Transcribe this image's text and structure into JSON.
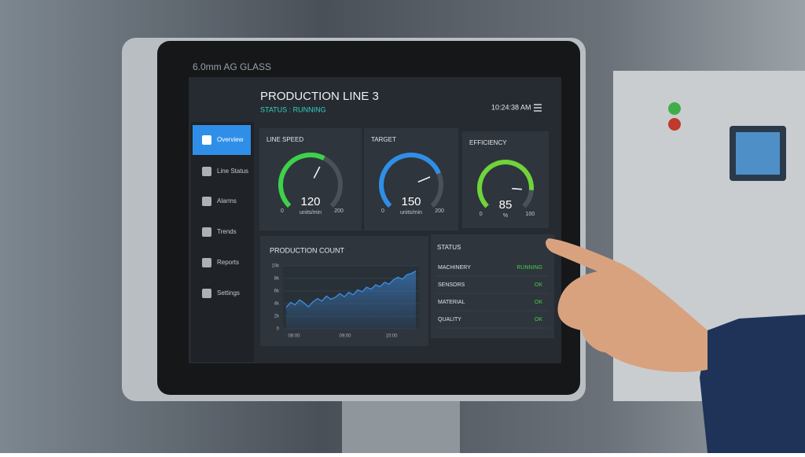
{
  "bezel_label": "6.0mm AG GLASS",
  "header": {
    "title": "PRODUCTION LINE 3",
    "status": "STATUS : RUNNING",
    "time": "10:24:38 AM"
  },
  "nav": [
    "Overview",
    "Line Status",
    "Alarms",
    "Trends",
    "Reports",
    "Settings"
  ],
  "gauges": [
    {
      "title": "LINE SPEED",
      "value": 120,
      "unit": "units/min",
      "min": 0,
      "max": 200,
      "color": "#3ed14a"
    },
    {
      "title": "TARGET",
      "value": 150,
      "unit": "units/min",
      "min": 0,
      "max": 200,
      "color": "#2f8fe8"
    },
    {
      "title": "EFFICIENCY",
      "value": 85,
      "unit": "%",
      "min": 0,
      "max": 100,
      "color": "#6fd43a"
    }
  ],
  "chart_data": {
    "type": "area",
    "title": "PRODUCTION COUNT",
    "color": "#3d8ee6",
    "values": [
      3400,
      4200,
      3800,
      4600,
      4100,
      3500,
      4300,
      4800,
      4400,
      5200,
      4700,
      5000,
      5600,
      5100,
      5800,
      5400,
      6200,
      5900,
      6600,
      6300,
      7000,
      6700,
      7400,
      7100,
      7800,
      8200,
      7900,
      8600,
      8800,
      9200
    ],
    "ylim": [
      0,
      10000
    ],
    "yticks": [
      0,
      {
        "value": 2000,
        "label": "2k"
      },
      {
        "value": 4000,
        "label": "4k"
      },
      {
        "value": 6000,
        "label": "6k"
      },
      {
        "value": 8000,
        "label": "8k"
      },
      {
        "value": 10000,
        "label": "10k"
      }
    ],
    "xtick_labels": [
      "08:00",
      "09:00",
      "10:00"
    ]
  },
  "status_panel": {
    "title": "STATUS",
    "rows": [
      [
        "MACHINERY",
        "RUNNING"
      ],
      [
        "SENSORS",
        "OK"
      ],
      [
        "MATERIAL",
        "OK"
      ],
      [
        "QUALITY",
        "OK"
      ]
    ]
  }
}
